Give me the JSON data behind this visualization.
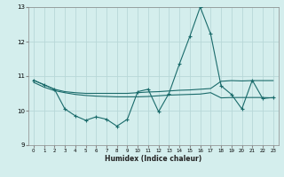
{
  "xlabel": "Humidex (Indice chaleur)",
  "bg_color": "#d4eeed",
  "grid_color": "#b8d8d8",
  "line_color": "#1a6b6b",
  "xlim": [
    -0.5,
    23.5
  ],
  "ylim": [
    9,
    13
  ],
  "yticks": [
    9,
    10,
    11,
    12,
    13
  ],
  "xticks": [
    0,
    1,
    2,
    3,
    4,
    5,
    6,
    7,
    8,
    9,
    10,
    11,
    12,
    13,
    14,
    15,
    16,
    17,
    18,
    19,
    20,
    21,
    22,
    23
  ],
  "series1_x": [
    0,
    1,
    2,
    3,
    4,
    5,
    6,
    7,
    8,
    9,
    10,
    11,
    12,
    13,
    14,
    15,
    16,
    17,
    18,
    19,
    20,
    21,
    22,
    23
  ],
  "series1_y": [
    10.88,
    10.75,
    10.62,
    10.55,
    10.52,
    10.5,
    10.5,
    10.5,
    10.5,
    10.5,
    10.52,
    10.54,
    10.55,
    10.57,
    10.59,
    10.6,
    10.62,
    10.64,
    10.85,
    10.87,
    10.86,
    10.87,
    10.87,
    10.87
  ],
  "series2_x": [
    0,
    1,
    2,
    3,
    4,
    5,
    6,
    7,
    8,
    9,
    10,
    11,
    12,
    13,
    14,
    15,
    16,
    17,
    18,
    19,
    20,
    21,
    22,
    23
  ],
  "series2_y": [
    10.82,
    10.68,
    10.58,
    10.52,
    10.47,
    10.44,
    10.42,
    10.41,
    10.4,
    10.4,
    10.4,
    10.41,
    10.43,
    10.45,
    10.46,
    10.47,
    10.48,
    10.52,
    10.37,
    10.38,
    10.38,
    10.38,
    10.38,
    10.37
  ],
  "series3_x": [
    0,
    1,
    2,
    3,
    4,
    5,
    6,
    7,
    8,
    9,
    10,
    11,
    12,
    13,
    14,
    15,
    16,
    17,
    18,
    19,
    20,
    21,
    22,
    23
  ],
  "series3_y": [
    10.88,
    10.75,
    10.62,
    10.05,
    9.85,
    9.72,
    9.82,
    9.75,
    9.55,
    9.75,
    10.55,
    10.62,
    9.97,
    10.5,
    11.35,
    12.15,
    13.0,
    12.22,
    10.72,
    10.47,
    10.05,
    10.88,
    10.35,
    10.38
  ]
}
